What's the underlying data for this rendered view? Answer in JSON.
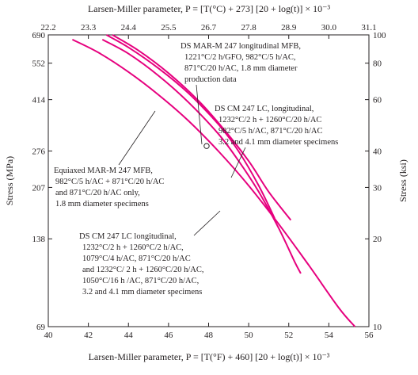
{
  "chart_data": {
    "type": "line",
    "title": "",
    "bottom_axis": {
      "label": "Larsen-Miller parameter, P = [T(°F) + 460] [20 + log(t)] × 10⁻³",
      "range": [
        40,
        56
      ],
      "ticks": [
        "40",
        "42",
        "44",
        "46",
        "48",
        "50",
        "52",
        "54",
        "56"
      ]
    },
    "top_axis": {
      "label": "Larsen-Miller parameter, P = [T(°C) + 273] [20 + log(t)] × 10⁻³",
      "ticks": [
        "22.2",
        "23.3",
        "24.4",
        "25.5",
        "26.7",
        "27.8",
        "28.9",
        "30.0",
        "31.1"
      ]
    },
    "left_axis": {
      "label": "Stress (MPa)",
      "scale": "log",
      "range": [
        69,
        690
      ],
      "ticks": [
        "690",
        "552",
        "414",
        "276",
        "207",
        "138",
        "69"
      ]
    },
    "right_axis": {
      "label": "Stress (ksi)",
      "scale": "log",
      "range": [
        10,
        100
      ],
      "ticks": [
        "100",
        "80",
        "60",
        "40",
        "30",
        "20",
        "10"
      ]
    },
    "grid": false,
    "line_color": "#e6007e",
    "series": [
      {
        "x": [
          41.2,
          42.5,
          44.0,
          45.5,
          47.0,
          48.5,
          50.0,
          51.5,
          53.0,
          54.5,
          55.3
        ],
        "y": [
          665,
          600,
          515,
          430,
          350,
          275,
          210,
          155,
          112,
          80,
          69
        ]
      },
      {
        "x": [
          42.7,
          44.0,
          45.5,
          47.0,
          48.5,
          49.5,
          50.5,
          51.5,
          52.3,
          52.6
        ],
        "y": [
          665,
          595,
          500,
          405,
          315,
          255,
          200,
          150,
          115,
          105
        ]
      },
      {
        "x": [
          42.9,
          44.0,
          45.5,
          47.0,
          48.5,
          49.5,
          50.5,
          51.3
        ],
        "y": [
          690,
          625,
          530,
          435,
          340,
          275,
          210,
          162
        ]
      },
      {
        "x": [
          43.2,
          44.5,
          46.0,
          47.5,
          48.8,
          50.0,
          51.0,
          52.1
        ],
        "y": [
          690,
          610,
          510,
          410,
          325,
          255,
          200,
          160
        ]
      }
    ],
    "marker": {
      "x": 47.9,
      "y": 287
    },
    "annotations": [
      {
        "text": [
          "DS MAR-M 247 longitudinal MFB,",
          "1221°C/2 h/GFO, 982°C/5 h/AC,",
          "871°C/20 h/AC, 1.8 mm diameter",
          "production data"
        ]
      },
      {
        "text": [
          "DS CM 247 LC, longitudinal,",
          "1232°C/2 h + 1260°C/20 h/AC",
          "982°C/5 h/AC, 871°C/20 h/AC",
          "3.2 and 4.1 mm diameter specimens"
        ]
      },
      {
        "text": [
          "Equiaxed MAR-M 247 MFB,",
          "982°C/5 h/AC + 871°C/20 h/AC",
          "and 871°C/20 h/AC only,",
          "1.8 mm diameter specimens"
        ]
      },
      {
        "text": [
          "DS CM 247 LC longitudinal,",
          "1232°C/2 h + 1260°C/2 h/AC,",
          "1079°C/4 h/AC, 871°C/20 h/AC",
          "and 1232°C/ 2 h + 1260°C/20 h/AC,",
          "1050°C/16 h /AC, 871°C/20 h/AC,",
          "3.2 and 4.1 mm diameter specimens"
        ]
      }
    ]
  }
}
